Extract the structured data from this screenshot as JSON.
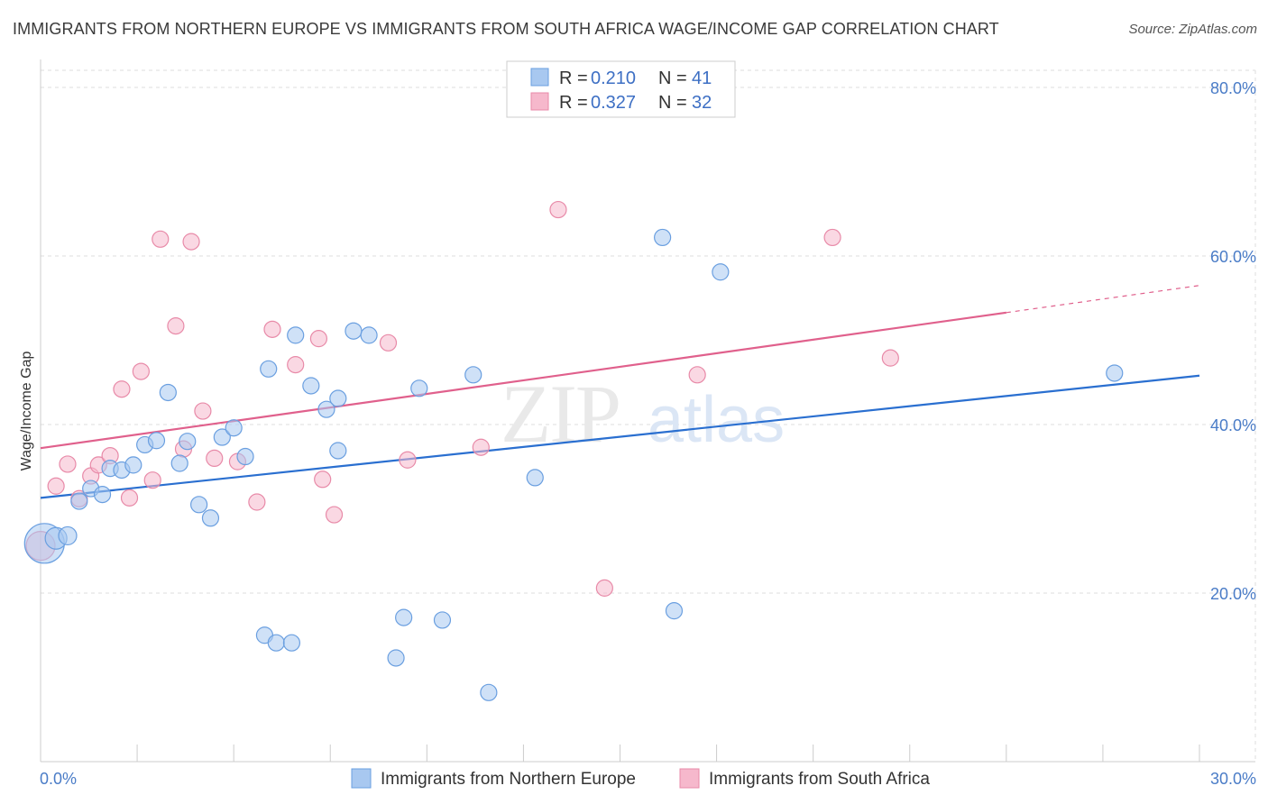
{
  "title": "IMMIGRANTS FROM NORTHERN EUROPE VS IMMIGRANTS FROM SOUTH AFRICA WAGE/INCOME GAP CORRELATION CHART",
  "source": "Source: ZipAtlas.com",
  "watermark": {
    "zip": "ZIP",
    "atlas": "atlas"
  },
  "colors": {
    "blue_fill": "#a8c8f0",
    "blue_stroke": "#6a9fe0",
    "blue_line": "#2a6fd0",
    "pink_fill": "#f6b8cc",
    "pink_stroke": "#e88aa8",
    "pink_line": "#e0608c",
    "tick_color": "#4a7cc7",
    "grid": "#dddddd"
  },
  "legend": {
    "r_label": "R =",
    "n_label": "N =",
    "rows": [
      {
        "series": "blue",
        "r": "0.210",
        "n": "41"
      },
      {
        "series": "pink",
        "r": "0.327",
        "n": "32"
      }
    ]
  },
  "chart_data": {
    "type": "scatter",
    "title": "IMMIGRANTS FROM NORTHERN EUROPE VS IMMIGRANTS FROM SOUTH AFRICA WAGE/INCOME GAP CORRELATION CHART",
    "xlabel": "",
    "ylabel": "Wage/Income Gap",
    "xlim": [
      0,
      30
    ],
    "ylim": [
      0,
      80
    ],
    "x_tick_labels": [
      "0.0%",
      "30.0%"
    ],
    "y_ticks": [
      20,
      40,
      60,
      80
    ],
    "y_tick_labels": [
      "20.0%",
      "40.0%",
      "60.0%",
      "80.0%"
    ],
    "grid": true,
    "legend_position": "top-center",
    "series": [
      {
        "name": "Immigrants from Northern Europe",
        "color": "blue",
        "trend": {
          "x0": 0,
          "y0": 31.3,
          "x1": 30,
          "y1": 45.8,
          "dash_from": null
        },
        "points": [
          [
            0.1,
            25.9,
            22
          ],
          [
            0.4,
            26.5,
            12
          ],
          [
            0.7,
            26.8,
            10
          ],
          [
            1.0,
            30.9,
            9
          ],
          [
            1.3,
            32.4,
            9
          ],
          [
            1.6,
            31.7,
            9
          ],
          [
            1.8,
            34.8,
            9
          ],
          [
            2.1,
            34.6,
            9
          ],
          [
            2.4,
            35.2,
            9
          ],
          [
            2.7,
            37.6,
            9
          ],
          [
            3.0,
            38.1,
            9
          ],
          [
            3.3,
            43.8,
            9
          ],
          [
            3.6,
            35.4,
            9
          ],
          [
            3.8,
            38.0,
            9
          ],
          [
            4.1,
            30.5,
            9
          ],
          [
            4.4,
            28.9,
            9
          ],
          [
            4.7,
            38.5,
            9
          ],
          [
            5.0,
            39.6,
            9
          ],
          [
            5.3,
            36.2,
            9
          ],
          [
            5.8,
            15.0,
            9
          ],
          [
            5.9,
            46.6,
            9
          ],
          [
            6.1,
            14.1,
            9
          ],
          [
            6.5,
            14.1,
            9
          ],
          [
            6.6,
            50.6,
            9
          ],
          [
            7.0,
            44.6,
            9
          ],
          [
            7.4,
            41.8,
            9
          ],
          [
            7.7,
            43.1,
            9
          ],
          [
            7.7,
            36.9,
            9
          ],
          [
            8.1,
            51.1,
            9
          ],
          [
            8.5,
            50.6,
            9
          ],
          [
            9.2,
            12.3,
            9
          ],
          [
            9.4,
            17.1,
            9
          ],
          [
            9.8,
            44.3,
            9
          ],
          [
            10.4,
            16.8,
            9
          ],
          [
            11.2,
            45.9,
            9
          ],
          [
            11.6,
            8.2,
            9
          ],
          [
            12.8,
            33.7,
            9
          ],
          [
            16.1,
            62.2,
            9
          ],
          [
            16.4,
            17.9,
            9
          ],
          [
            17.6,
            58.1,
            9
          ],
          [
            27.8,
            46.1,
            9
          ]
        ]
      },
      {
        "name": "Immigrants from South Africa",
        "color": "pink",
        "trend": {
          "x0": 0,
          "y0": 37.2,
          "x1": 30,
          "y1": 56.5,
          "dash_from": 25.0
        },
        "points": [
          [
            0.0,
            25.6,
            16
          ],
          [
            0.4,
            32.7,
            9
          ],
          [
            0.7,
            35.3,
            9
          ],
          [
            1.0,
            31.2,
            9
          ],
          [
            1.3,
            33.9,
            9
          ],
          [
            1.5,
            35.2,
            9
          ],
          [
            1.8,
            36.3,
            9
          ],
          [
            2.1,
            44.2,
            9
          ],
          [
            2.3,
            31.3,
            9
          ],
          [
            2.6,
            46.3,
            9
          ],
          [
            2.9,
            33.4,
            9
          ],
          [
            3.1,
            62.0,
            9
          ],
          [
            3.5,
            51.7,
            9
          ],
          [
            3.7,
            37.1,
            9
          ],
          [
            3.9,
            61.7,
            9
          ],
          [
            4.2,
            41.6,
            9
          ],
          [
            4.5,
            36.0,
            9
          ],
          [
            5.1,
            35.6,
            9
          ],
          [
            5.6,
            30.8,
            9
          ],
          [
            6.0,
            51.3,
            9
          ],
          [
            6.6,
            47.1,
            9
          ],
          [
            7.2,
            50.2,
            9
          ],
          [
            7.3,
            33.5,
            9
          ],
          [
            7.6,
            29.3,
            9
          ],
          [
            9.0,
            49.7,
            9
          ],
          [
            9.5,
            35.8,
            9
          ],
          [
            11.4,
            37.3,
            9
          ],
          [
            13.4,
            65.5,
            9
          ],
          [
            14.6,
            20.6,
            9
          ],
          [
            17.0,
            45.9,
            9
          ],
          [
            20.5,
            62.2,
            9
          ],
          [
            22.0,
            47.9,
            9
          ]
        ]
      }
    ]
  }
}
